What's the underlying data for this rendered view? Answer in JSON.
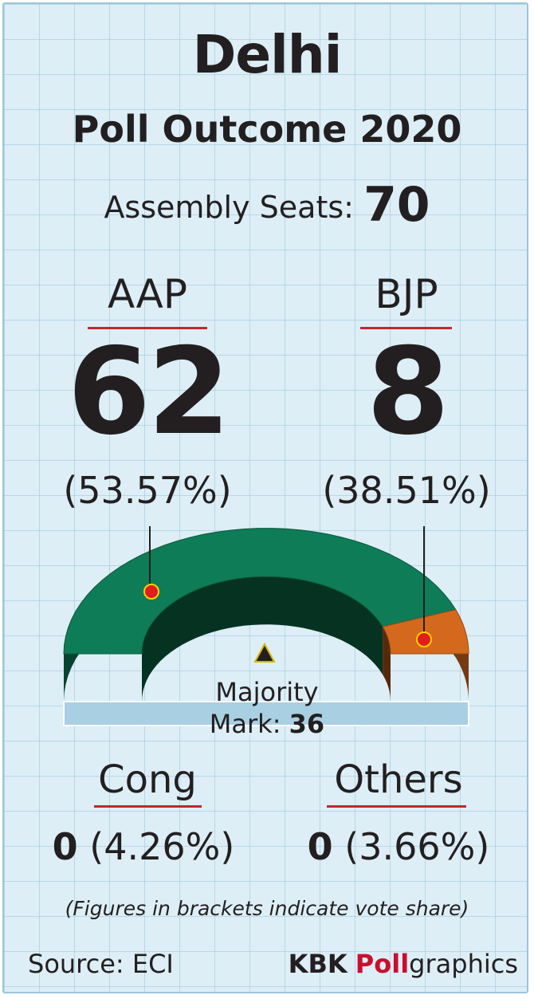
{
  "chart_data": {
    "type": "pie",
    "title": "Delhi",
    "subtitle": "Poll Outcome 2020",
    "total_label": "Assembly Seats:",
    "total_seats": 70,
    "majority_label": "Majority",
    "majority_mark_label": "Mark:",
    "majority_mark": 36,
    "parties": [
      {
        "name": "AAP",
        "seats": 62,
        "seats_label": "62",
        "vote_share": 53.57,
        "vote_share_label": "(53.57%)",
        "color": "#0e7c56"
      },
      {
        "name": "BJP",
        "seats": 8,
        "seats_label": "8",
        "vote_share": 38.51,
        "vote_share_label": "(38.51%)",
        "color": "#d4691e"
      },
      {
        "name": "Cong",
        "seats": 0,
        "seats_label": "0",
        "vote_share": 4.26,
        "vote_share_label": "(4.26%)"
      },
      {
        "name": "Others",
        "seats": 0,
        "seats_label": "0",
        "vote_share": 3.66,
        "vote_share_label": "(3.66%)"
      }
    ]
  },
  "note": "(Figures in brackets indicate vote share)",
  "source": "Source: ECI",
  "brand": {
    "part1": "KBK",
    "part2": "Poll",
    "part3": "graphics",
    "accent": "#c8102e"
  }
}
